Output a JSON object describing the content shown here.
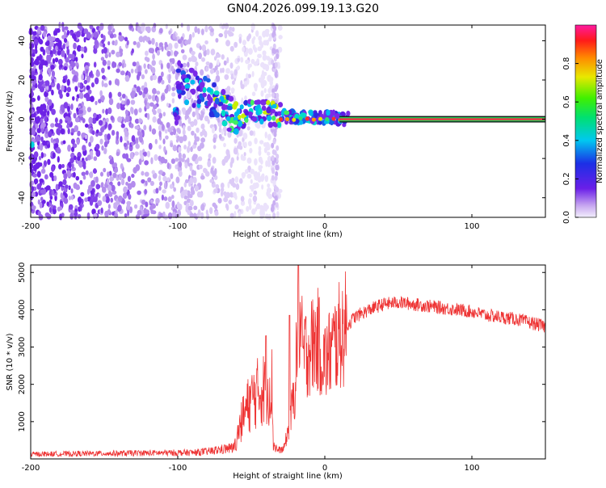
{
  "title": "GN04.2026.099.19.13.G20",
  "colors": {
    "line": "#ee3333",
    "center_line": "#ee3344",
    "low": "#ddccf5",
    "mid": "#7722ee",
    "bright": "#00ddcc",
    "peak": "#ccee00"
  },
  "chart_data": [
    {
      "type": "heatmap",
      "name": "spectrogram",
      "xlabel": "Height of straight line (km)",
      "ylabel": "Frequency (Hz)",
      "xlim": [
        -200,
        150
      ],
      "ylim": [
        -50,
        48
      ],
      "xticks": [
        -200,
        -100,
        0,
        100
      ],
      "xtick_labels": [
        "-200",
        "-100",
        "0",
        "100"
      ],
      "yticks": [
        -40,
        -20,
        0,
        20,
        40
      ],
      "ytick_labels": [
        "-40",
        "-20",
        "0",
        "20",
        "40"
      ],
      "colorbar": {
        "label": "Normalized spectral amplitude",
        "range": [
          0,
          1
        ],
        "ticks": [
          0.0,
          0.2,
          0.4,
          0.6,
          0.8
        ],
        "tick_labels": [
          "0.0",
          "0.2",
          "0.4",
          "0.6",
          "0.8"
        ],
        "colormap": "rainbow"
      },
      "features": {
        "diffuse_noise_x": [
          -200,
          -65
        ],
        "ridge": [
          [
            -100,
            20
          ],
          [
            -90,
            16
          ],
          [
            -80,
            12
          ],
          [
            -70,
            6
          ],
          [
            -60,
            0
          ],
          [
            -50,
            5
          ],
          [
            -40,
            3
          ],
          [
            -30,
            2
          ],
          [
            -20,
            1
          ],
          [
            0,
            1
          ],
          [
            15,
            0
          ]
        ],
        "carrier_line_start_x": 10,
        "carrier_line_freq": 0
      }
    },
    {
      "type": "line",
      "name": "snr",
      "xlabel": "Height of straight line (km)",
      "ylabel": "SNR (10 * v/v)",
      "xlim": [
        -200,
        150
      ],
      "ylim": [
        0,
        5200
      ],
      "xticks": [
        -200,
        -100,
        0,
        100
      ],
      "xtick_labels": [
        "-200",
        "-100",
        "0",
        "100"
      ],
      "yticks": [
        1000,
        2000,
        3000,
        4000,
        5000
      ],
      "ytick_labels": [
        "1000",
        "2000",
        "3000",
        "4000",
        "5000"
      ],
      "envelope": {
        "x": [
          -200,
          -90,
          -80,
          -70,
          -62,
          -55,
          -50,
          -45,
          -40,
          -36,
          -35,
          -32,
          -28,
          -24,
          -20,
          -18,
          -15,
          -10,
          -5,
          0,
          10,
          20,
          30,
          40,
          50,
          60,
          70,
          80,
          90,
          100,
          110,
          120,
          130,
          140,
          150
        ],
        "y": [
          150,
          200,
          230,
          300,
          350,
          1200,
          1600,
          1800,
          1900,
          2000,
          400,
          230,
          260,
          900,
          2000,
          4200,
          2800,
          3000,
          3200,
          2600,
          3300,
          3800,
          4000,
          4150,
          4200,
          4150,
          4100,
          4050,
          4000,
          3950,
          3850,
          3800,
          3750,
          3650,
          3550
        ]
      },
      "spikes": [
        {
          "x": -40,
          "y": 3300
        },
        {
          "x": -18,
          "y": 5200
        },
        {
          "x": -24,
          "y": 3850
        }
      ]
    }
  ]
}
